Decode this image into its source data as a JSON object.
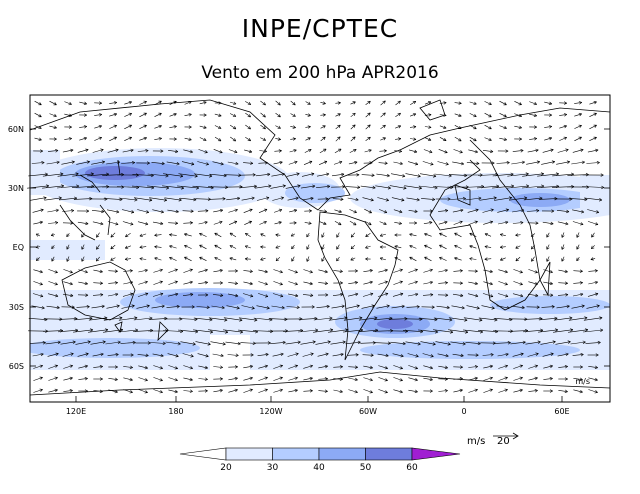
{
  "header": {
    "title": "INPE/CPTEC",
    "subtitle": "Vento em 200 hPa APR2016"
  },
  "map": {
    "lat_labels": [
      "60N",
      "30N",
      "EQ",
      "30S",
      "60S"
    ],
    "lon_labels": [
      "120E",
      "180",
      "120W",
      "60W",
      "0",
      "60E"
    ]
  },
  "legend": {
    "units": "m/s",
    "reference_vector": "20",
    "colorbar_labels": [
      "20",
      "30",
      "40",
      "50",
      "60"
    ],
    "colors": [
      "#ffffff",
      "#e1ebff",
      "#b4cdff",
      "#8caaf5",
      "#6e7ddc",
      "#5050e6",
      "#a01ed2"
    ],
    "vector_key_label": "m/s"
  }
}
